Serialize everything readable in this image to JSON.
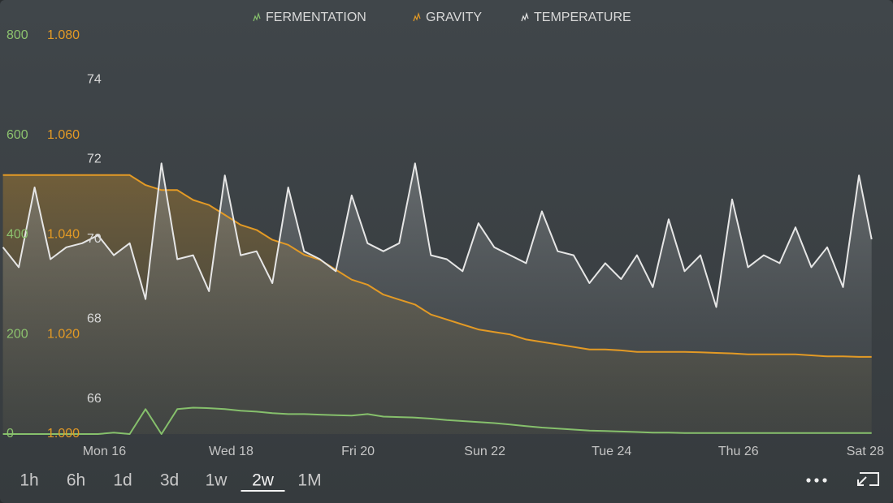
{
  "chart_data": {
    "type": "line",
    "legend": "top",
    "x": [
      -1.6,
      -1.35,
      -1.1,
      -0.85,
      -0.6,
      -0.35,
      -0.1,
      0.15,
      0.4,
      0.65,
      0.9,
      1.15,
      1.4,
      1.65,
      1.9,
      2.15,
      2.4,
      2.65,
      2.9,
      3.15,
      3.4,
      3.65,
      3.9,
      4.15,
      4.4,
      4.65,
      4.9,
      5.15,
      5.4,
      5.65,
      5.9,
      6.15,
      6.4,
      6.65,
      6.9,
      7.15,
      7.4,
      7.65,
      7.9,
      8.15,
      8.4,
      8.65,
      8.9,
      9.15,
      9.4,
      9.65,
      9.9,
      10.15,
      10.4,
      10.65,
      10.9,
      11.15,
      11.4,
      11.65,
      11.9,
      12.1
    ],
    "xlim": [
      -1.62,
      12.13
    ],
    "xticks": [
      {
        "value": 0,
        "label": "Mon 16"
      },
      {
        "value": 2,
        "label": "Wed 18"
      },
      {
        "value": 4,
        "label": "Fri 20"
      },
      {
        "value": 6,
        "label": "Sun 22"
      },
      {
        "value": 8,
        "label": "Tue 24"
      },
      {
        "value": 10,
        "label": "Thu 26"
      },
      {
        "value": 12,
        "label": "Sat 28"
      }
    ],
    "ylim": [
      0,
      800
    ],
    "yticks": [
      0,
      200,
      400,
      600,
      800
    ],
    "y2lim": [
      1.0,
      1.08
    ],
    "y2ticks": [
      {
        "value": 1.0,
        "label": "1.000"
      },
      {
        "value": 1.02,
        "label": "1.020"
      },
      {
        "value": 1.04,
        "label": "1.040"
      },
      {
        "value": 1.06,
        "label": "1.060"
      },
      {
        "value": 1.08,
        "label": "1.080"
      }
    ],
    "y3lim": [
      65.12,
      75.1
    ],
    "y3ticks": [
      66,
      68,
      70,
      72,
      74
    ],
    "series": [
      {
        "name": "FERMENTATION",
        "color": "#86c06c",
        "axis": "y",
        "values": [
          0,
          0,
          0,
          0,
          0,
          0,
          0,
          3,
          0,
          50,
          0,
          50,
          53,
          52,
          50,
          47,
          45,
          42,
          40,
          40,
          39,
          38,
          37,
          40,
          35,
          34,
          33,
          31,
          28,
          26,
          24,
          22,
          19,
          16,
          13,
          11,
          9,
          7,
          6,
          5,
          4,
          3,
          3,
          2,
          2,
          2,
          2,
          2,
          2,
          2,
          2,
          2,
          2,
          2,
          2,
          2
        ]
      },
      {
        "name": "GRAVITY",
        "color": "#e39a25",
        "axis": "y2",
        "values": [
          1.052,
          1.052,
          1.052,
          1.052,
          1.052,
          1.052,
          1.052,
          1.052,
          1.052,
          1.05,
          1.049,
          1.049,
          1.047,
          1.046,
          1.044,
          1.042,
          1.041,
          1.039,
          1.038,
          1.036,
          1.035,
          1.033,
          1.031,
          1.03,
          1.028,
          1.027,
          1.026,
          1.024,
          1.023,
          1.022,
          1.021,
          1.0205,
          1.02,
          1.019,
          1.0185,
          1.018,
          1.0175,
          1.017,
          1.017,
          1.0168,
          1.0165,
          1.0165,
          1.0165,
          1.0165,
          1.0164,
          1.0163,
          1.0162,
          1.016,
          1.016,
          1.016,
          1.016,
          1.0158,
          1.0156,
          1.0156,
          1.0155,
          1.0155
        ]
      },
      {
        "name": "TEMPERATURE",
        "color": "#e6e6e6",
        "axis": "y3",
        "values": [
          69.8,
          69.3,
          71.3,
          69.5,
          69.8,
          69.9,
          70.1,
          69.6,
          69.9,
          68.5,
          71.9,
          69.5,
          69.6,
          68.7,
          71.6,
          69.6,
          69.7,
          68.9,
          71.3,
          69.7,
          69.5,
          69.2,
          71.1,
          69.9,
          69.7,
          69.9,
          71.9,
          69.6,
          69.5,
          69.2,
          70.4,
          69.8,
          69.6,
          69.4,
          70.7,
          69.7,
          69.6,
          68.9,
          69.4,
          69.0,
          69.6,
          68.8,
          70.5,
          69.2,
          69.6,
          68.3,
          71.0,
          69.3,
          69.6,
          69.4,
          70.3,
          69.3,
          69.8,
          68.8,
          71.6,
          70.0
        ]
      }
    ],
    "range_buttons": [
      "1h",
      "6h",
      "1d",
      "3d",
      "1w",
      "2w",
      "1M"
    ],
    "selected_range": 5
  }
}
